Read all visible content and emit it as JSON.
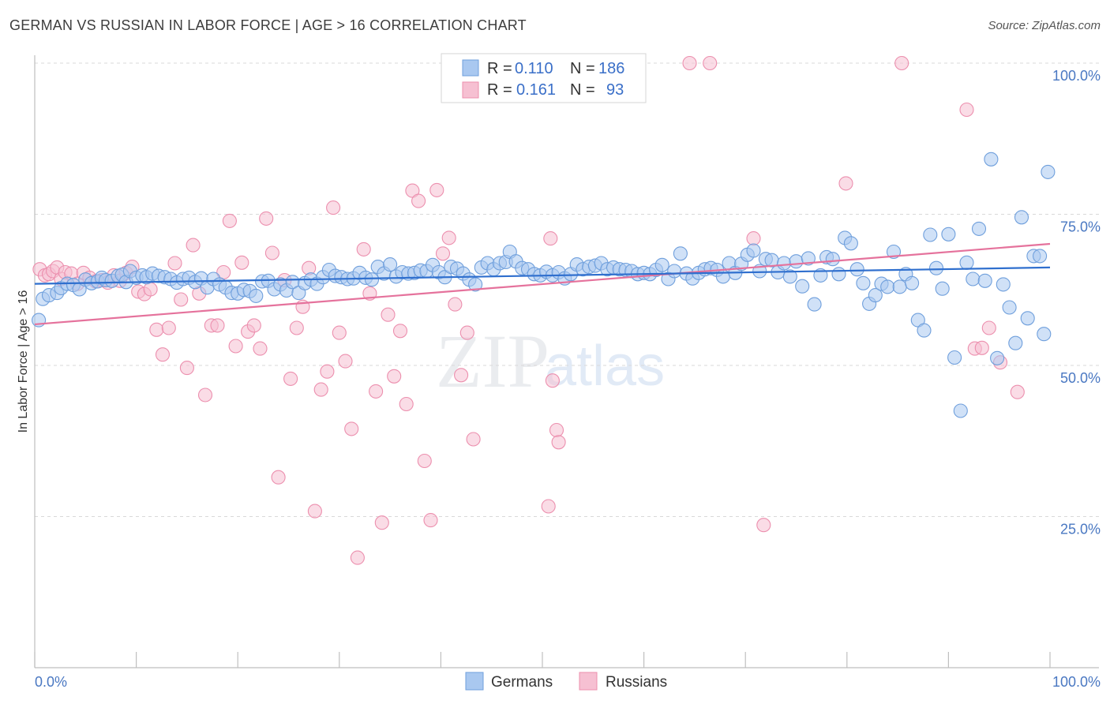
{
  "title": "GERMAN VS RUSSIAN IN LABOR FORCE | AGE > 16 CORRELATION CHART",
  "source": "Source: ZipAtlas.com",
  "watermark": {
    "zip": "ZIP",
    "atlas": "atlas"
  },
  "colors": {
    "german_fill": "#a9c8f0",
    "german_stroke": "#6f9fdc",
    "german_line": "#2f6fce",
    "russian_fill": "#f6c0d2",
    "russian_stroke": "#ec8fae",
    "russian_line": "#e5729c",
    "tick_text": "#4a78c2",
    "grid": "#d9d9d9"
  },
  "legend": {
    "rows": [
      {
        "r_label": "R =",
        "r_value": "0.110",
        "n_label": "N =",
        "n_value": "186"
      },
      {
        "r_label": "R =",
        "r_value": "0.161",
        "n_label": "N =",
        "n_value": "93"
      }
    ],
    "bottom": [
      "Germans",
      "Russians"
    ]
  },
  "chart_data": {
    "type": "scatter",
    "xlabel": "",
    "ylabel": "In Labor Force | Age > 16",
    "xlim": [
      0,
      100
    ],
    "ylim": [
      0,
      100
    ],
    "x_tick_labels": {
      "left": "0.0%",
      "right": "100.0%"
    },
    "y_tick_labels": [
      "100.0%",
      "75.0%",
      "50.0%",
      "25.0%"
    ],
    "y_tick_values": [
      100,
      75,
      50,
      25
    ],
    "grid": "horizontal dashed",
    "legend_placement": "top-center",
    "series": [
      {
        "name": "Germans",
        "trend": {
          "x0": 0,
          "y0": 63.5,
          "x1": 100,
          "y1": 66.2
        },
        "points": [
          [
            0.4,
            57.5
          ],
          [
            0.8,
            61
          ],
          [
            1.4,
            61.6
          ],
          [
            2.2,
            62
          ],
          [
            2.6,
            62.8
          ],
          [
            3.2,
            63.5
          ],
          [
            3.8,
            63.3
          ],
          [
            4.4,
            62.6
          ],
          [
            5,
            64.2
          ],
          [
            5.6,
            63.6
          ],
          [
            6.2,
            63.9
          ],
          [
            6.6,
            64.5
          ],
          [
            7,
            64.1
          ],
          [
            7.6,
            64
          ],
          [
            8.2,
            64.8
          ],
          [
            8.6,
            65
          ],
          [
            9,
            63.8
          ],
          [
            9.4,
            65.6
          ],
          [
            10,
            64.5
          ],
          [
            10.6,
            64.9
          ],
          [
            11,
            64.6
          ],
          [
            11.6,
            65.2
          ],
          [
            12.2,
            64.8
          ],
          [
            12.8,
            64.6
          ],
          [
            13.4,
            64.3
          ],
          [
            14,
            63.7
          ],
          [
            14.6,
            64.3
          ],
          [
            15.2,
            64.5
          ],
          [
            15.8,
            63.8
          ],
          [
            16.4,
            64.4
          ],
          [
            17,
            62.9
          ],
          [
            17.6,
            64.3
          ],
          [
            18.2,
            63.4
          ],
          [
            18.8,
            62.9
          ],
          [
            19.4,
            62
          ],
          [
            20,
            61.9
          ],
          [
            20.6,
            62.5
          ],
          [
            21.2,
            62.3
          ],
          [
            21.8,
            61.5
          ],
          [
            22.4,
            63.9
          ],
          [
            23,
            64
          ],
          [
            23.6,
            62.6
          ],
          [
            24.2,
            63.4
          ],
          [
            24.8,
            62.4
          ],
          [
            25.4,
            63.8
          ],
          [
            26,
            62
          ],
          [
            26.6,
            63.6
          ],
          [
            27.2,
            64.2
          ],
          [
            27.8,
            63.5
          ],
          [
            28.4,
            64.6
          ],
          [
            29,
            65.8
          ],
          [
            29.6,
            64.8
          ],
          [
            30.2,
            64.6
          ],
          [
            30.8,
            64.3
          ],
          [
            31.4,
            64.4
          ],
          [
            32,
            65.3
          ],
          [
            32.6,
            64.5
          ],
          [
            33.2,
            64.2
          ],
          [
            33.8,
            66.3
          ],
          [
            34.4,
            65.2
          ],
          [
            35,
            66.7
          ],
          [
            35.6,
            64.7
          ],
          [
            36.2,
            65.4
          ],
          [
            36.8,
            65.2
          ],
          [
            37.4,
            65.3
          ],
          [
            38,
            65.7
          ],
          [
            38.6,
            65.6
          ],
          [
            39.2,
            66.6
          ],
          [
            39.8,
            65.4
          ],
          [
            40.4,
            64.6
          ],
          [
            41,
            66.3
          ],
          [
            41.6,
            66
          ],
          [
            42.2,
            65.2
          ],
          [
            42.8,
            64.2
          ],
          [
            43.4,
            63.4
          ],
          [
            44,
            66.2
          ],
          [
            44.6,
            66.9
          ],
          [
            45.2,
            65.9
          ],
          [
            45.8,
            66.9
          ],
          [
            46.4,
            67.1
          ],
          [
            46.8,
            68.8
          ],
          [
            47.4,
            67.2
          ],
          [
            48,
            66.1
          ],
          [
            48.6,
            65.9
          ],
          [
            49.2,
            65.1
          ],
          [
            49.8,
            64.9
          ],
          [
            50.4,
            65.5
          ],
          [
            51,
            64.9
          ],
          [
            51.6,
            65.4
          ],
          [
            52.2,
            64.4
          ],
          [
            52.8,
            65.1
          ],
          [
            53.4,
            66.7
          ],
          [
            54,
            65.9
          ],
          [
            54.6,
            66.3
          ],
          [
            55.2,
            66.5
          ],
          [
            55.8,
            66.9
          ],
          [
            56.4,
            65.9
          ],
          [
            57,
            66.2
          ],
          [
            57.6,
            65.9
          ],
          [
            58.2,
            65.8
          ],
          [
            58.8,
            65.6
          ],
          [
            59.4,
            65.1
          ],
          [
            60,
            65.3
          ],
          [
            60.6,
            65.1
          ],
          [
            61.2,
            65.8
          ],
          [
            61.8,
            66.6
          ],
          [
            62.4,
            64.3
          ],
          [
            63,
            65.6
          ],
          [
            63.6,
            68.5
          ],
          [
            64.2,
            65.2
          ],
          [
            64.8,
            64.4
          ],
          [
            65.4,
            65.3
          ],
          [
            66,
            65.9
          ],
          [
            66.6,
            66.1
          ],
          [
            67.2,
            65.8
          ],
          [
            67.8,
            64.7
          ],
          [
            68.4,
            66.9
          ],
          [
            69,
            65.3
          ],
          [
            69.6,
            66.8
          ],
          [
            70.2,
            68.3
          ],
          [
            70.8,
            69
          ],
          [
            71.4,
            65.6
          ],
          [
            72,
            67.6
          ],
          [
            72.6,
            67.4
          ],
          [
            73.2,
            65.4
          ],
          [
            73.8,
            66.9
          ],
          [
            74.4,
            64.7
          ],
          [
            75,
            67.2
          ],
          [
            75.6,
            63.1
          ],
          [
            76.2,
            67.7
          ],
          [
            76.8,
            60.1
          ],
          [
            77.4,
            64.9
          ],
          [
            78,
            67.9
          ],
          [
            78.6,
            67.6
          ],
          [
            79.2,
            65.1
          ],
          [
            79.8,
            71.1
          ],
          [
            80.4,
            70.2
          ],
          [
            81,
            65.9
          ],
          [
            81.6,
            63.6
          ],
          [
            82.2,
            60.2
          ],
          [
            82.8,
            61.6
          ],
          [
            83.4,
            63.5
          ],
          [
            84,
            63
          ],
          [
            84.6,
            68.8
          ],
          [
            85.2,
            63
          ],
          [
            85.8,
            65.1
          ],
          [
            86.4,
            63.6
          ],
          [
            87,
            57.5
          ],
          [
            87.6,
            55.8
          ],
          [
            88.2,
            71.6
          ],
          [
            88.8,
            66.1
          ],
          [
            89.4,
            62.7
          ],
          [
            90,
            71.7
          ],
          [
            90.6,
            51.3
          ],
          [
            91.2,
            42.5
          ],
          [
            91.8,
            67
          ],
          [
            92.4,
            64.3
          ],
          [
            93,
            72.6
          ],
          [
            93.6,
            64
          ],
          [
            94.2,
            84.1
          ],
          [
            94.8,
            51.2
          ],
          [
            95.4,
            63.4
          ],
          [
            96,
            59.6
          ],
          [
            96.6,
            53.7
          ],
          [
            97.2,
            74.5
          ],
          [
            97.8,
            57.8
          ],
          [
            98.4,
            68.1
          ],
          [
            99,
            68.1
          ],
          [
            99.4,
            55.2
          ],
          [
            99.8,
            82
          ]
        ]
      },
      {
        "name": "Russians",
        "trend": {
          "x0": 0,
          "y0": 56.8,
          "x1": 100,
          "y1": 70.1
        },
        "points": [
          [
            0.5,
            65.9
          ],
          [
            1,
            64.9
          ],
          [
            1.4,
            65.1
          ],
          [
            1.8,
            65.6
          ],
          [
            2.2,
            66.2
          ],
          [
            2.6,
            64.3
          ],
          [
            3,
            65.4
          ],
          [
            3.6,
            65.2
          ],
          [
            4.2,
            63.5
          ],
          [
            4.8,
            65.3
          ],
          [
            5.4,
            64.5
          ],
          [
            6,
            63.9
          ],
          [
            6.6,
            64.1
          ],
          [
            7.2,
            63.7
          ],
          [
            7.8,
            64.9
          ],
          [
            8.4,
            64
          ],
          [
            9,
            65.3
          ],
          [
            9.6,
            66.3
          ],
          [
            10.2,
            62.2
          ],
          [
            10.8,
            61.8
          ],
          [
            11.4,
            62.6
          ],
          [
            12,
            55.9
          ],
          [
            12.6,
            51.8
          ],
          [
            13.2,
            56.2
          ],
          [
            13.8,
            66.9
          ],
          [
            14.4,
            60.9
          ],
          [
            15,
            49.6
          ],
          [
            15.6,
            69.9
          ],
          [
            16.2,
            61.9
          ],
          [
            16.8,
            45.1
          ],
          [
            17.4,
            56.6
          ],
          [
            18,
            56.6
          ],
          [
            18.6,
            65.4
          ],
          [
            19.2,
            73.9
          ],
          [
            19.8,
            53.2
          ],
          [
            20.4,
            67
          ],
          [
            21,
            55.6
          ],
          [
            21.6,
            56.6
          ],
          [
            22.2,
            52.8
          ],
          [
            22.8,
            74.3
          ],
          [
            23.4,
            68.6
          ],
          [
            24,
            31.5
          ],
          [
            24.6,
            64.1
          ],
          [
            25.2,
            47.8
          ],
          [
            25.8,
            56.2
          ],
          [
            26.4,
            59.7
          ],
          [
            27,
            66.1
          ],
          [
            27.6,
            25.9
          ],
          [
            28.2,
            46
          ],
          [
            28.8,
            49
          ],
          [
            29.4,
            76.1
          ],
          [
            30,
            55.4
          ],
          [
            30.6,
            50.7
          ],
          [
            31.2,
            39.5
          ],
          [
            31.8,
            18.2
          ],
          [
            32.4,
            69.2
          ],
          [
            33,
            61.9
          ],
          [
            33.6,
            45.7
          ],
          [
            34.2,
            24
          ],
          [
            34.8,
            58.4
          ],
          [
            35.4,
            48.2
          ],
          [
            36,
            55.7
          ],
          [
            36.6,
            43.6
          ],
          [
            37.2,
            78.9
          ],
          [
            37.8,
            77.2
          ],
          [
            38.4,
            34.2
          ],
          [
            39,
            24.4
          ],
          [
            39.6,
            79
          ],
          [
            40.2,
            68.5
          ],
          [
            40.8,
            71.1
          ],
          [
            41.4,
            60.1
          ],
          [
            42,
            48.4
          ],
          [
            42.6,
            55.4
          ],
          [
            43.2,
            37.8
          ],
          [
            50.6,
            26.7
          ],
          [
            50.8,
            71
          ],
          [
            51,
            47.5
          ],
          [
            51.4,
            39.3
          ],
          [
            51.6,
            37.3
          ],
          [
            64.5,
            100
          ],
          [
            66.5,
            100
          ],
          [
            70.8,
            71
          ],
          [
            71.8,
            23.6
          ],
          [
            79.9,
            80.1
          ],
          [
            85.4,
            100
          ],
          [
            91.8,
            92.3
          ],
          [
            92.6,
            52.8
          ],
          [
            93.3,
            52.9
          ],
          [
            94,
            56.2
          ],
          [
            95.1,
            50.5
          ],
          [
            96.8,
            45.6
          ]
        ]
      }
    ]
  }
}
